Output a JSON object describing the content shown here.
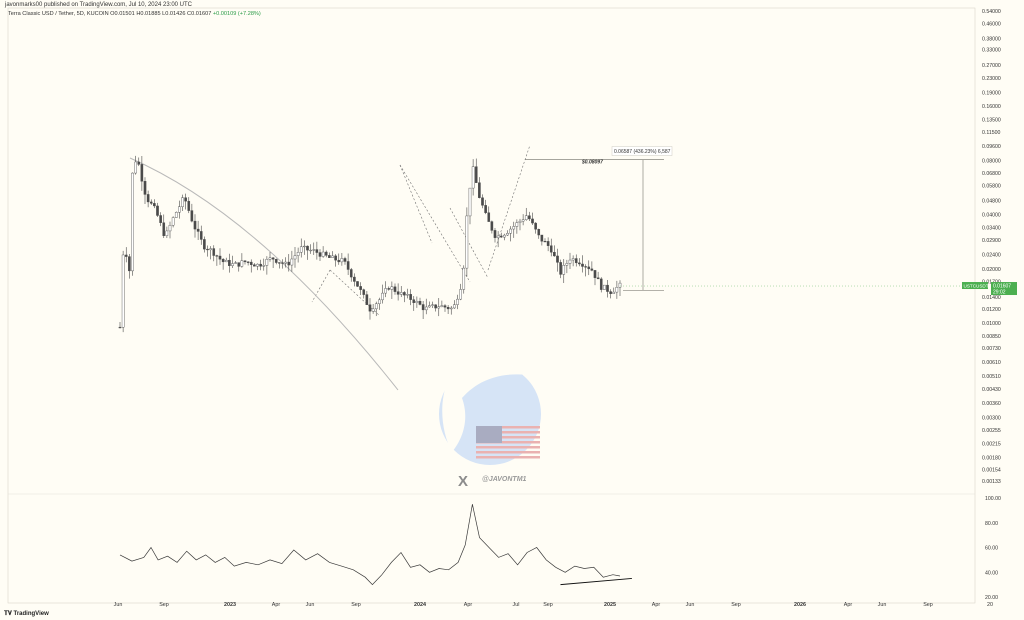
{
  "header": {
    "publisher_line": "javonmarks00 published on TradingView.com, Jul 10, 2024 23:00 UTC",
    "symbol": "Terra Classic USD / Tether, 5D, KUCOIN",
    "ohlc": {
      "open": "O0.01501",
      "high": "H0.01885",
      "low": "L0.01426",
      "close": "C0.01607",
      "change": "+0.00109 (+7.28%)"
    }
  },
  "chart_data": [
    {
      "type": "candlestick",
      "title": "Terra Classic USD / Tether, 5D, KUCOIN",
      "y_scale": "log",
      "y_ticks": [
        "0.54000",
        "0.46000",
        "0.38000",
        "0.33000",
        "0.27000",
        "0.23000",
        "0.19000",
        "0.16000",
        "0.13500",
        "0.11500",
        "0.09600",
        "0.08000",
        "0.06800",
        "0.05800",
        "0.04800",
        "0.04000",
        "0.03400",
        "0.02900",
        "0.02400",
        "0.02000",
        "0.01700",
        "0.01400",
        "0.01200",
        "0.01000",
        "0.00850",
        "0.00730",
        "0.00610",
        "0.00510",
        "0.00430",
        "0.00360",
        "0.00300",
        "0.00255",
        "0.00215",
        "0.00180",
        "0.00154",
        "0.00133"
      ],
      "x_ticks": [
        "Jun",
        "Sep",
        "2023",
        "Apr",
        "Jun",
        "Sep",
        "2024",
        "Apr",
        "Jul",
        "Sep",
        "2025",
        "Apr",
        "Jun",
        "Sep",
        "2026",
        "Apr",
        "Jun",
        "Sep",
        "20"
      ],
      "close_price_path": [
        [
          2022.42,
          0.0095
        ],
        [
          2022.44,
          0.04
        ],
        [
          2022.455,
          0.012
        ],
        [
          2022.47,
          0.065
        ],
        [
          2022.49,
          0.085
        ],
        [
          2022.53,
          0.05
        ],
        [
          2022.57,
          0.042
        ],
        [
          2022.61,
          0.03
        ],
        [
          2022.65,
          0.04
        ],
        [
          2022.69,
          0.05
        ],
        [
          2022.73,
          0.035
        ],
        [
          2022.77,
          0.027
        ],
        [
          2022.81,
          0.025
        ],
        [
          2022.85,
          0.022
        ],
        [
          2022.9,
          0.021
        ],
        [
          2022.95,
          0.022
        ],
        [
          2023.0,
          0.021
        ],
        [
          2023.06,
          0.023
        ],
        [
          2023.12,
          0.021
        ],
        [
          2023.18,
          0.026
        ],
        [
          2023.24,
          0.025
        ],
        [
          2023.3,
          0.023
        ],
        [
          2023.36,
          0.022
        ],
        [
          2023.42,
          0.016
        ],
        [
          2023.47,
          0.012
        ],
        [
          2023.51,
          0.0135
        ],
        [
          2023.55,
          0.016
        ],
        [
          2023.6,
          0.0145
        ],
        [
          2023.65,
          0.0135
        ],
        [
          2023.7,
          0.012
        ],
        [
          2023.76,
          0.0125
        ],
        [
          2023.82,
          0.012
        ],
        [
          2023.86,
          0.0175
        ],
        [
          2023.88,
          0.045
        ],
        [
          2023.9,
          0.074
        ],
        [
          2023.93,
          0.05
        ],
        [
          2023.96,
          0.038
        ],
        [
          2024.0,
          0.03
        ],
        [
          2024.04,
          0.032
        ],
        [
          2024.08,
          0.035
        ],
        [
          2024.13,
          0.04
        ],
        [
          2024.18,
          0.03
        ],
        [
          2024.23,
          0.026
        ],
        [
          2024.27,
          0.019
        ],
        [
          2024.31,
          0.023
        ],
        [
          2024.35,
          0.022
        ],
        [
          2024.4,
          0.02
        ],
        [
          2024.44,
          0.016
        ],
        [
          2024.48,
          0.015
        ],
        [
          2024.52,
          0.0161
        ]
      ],
      "last_price_label": "USTCUSDT",
      "last_price": "0.01607",
      "countdown": "29:02",
      "projection": {
        "target_label": "$0.08097",
        "measure_text": "0.06587 (436.23%) 6,587"
      },
      "overlay_text": "@JAVONTM1"
    },
    {
      "type": "line",
      "name": "RSI",
      "y_ticks": [
        "100.00",
        "80.00",
        "60.00",
        "40.00",
        "20.00"
      ],
      "ylim": [
        20,
        100
      ],
      "x": [
        2022.42,
        2022.47,
        2022.52,
        2022.55,
        2022.58,
        2022.62,
        2022.66,
        2022.7,
        2022.74,
        2022.78,
        2022.82,
        2022.86,
        2022.9,
        2022.95,
        2023.0,
        2023.05,
        2023.1,
        2023.15,
        2023.2,
        2023.25,
        2023.3,
        2023.35,
        2023.4,
        2023.45,
        2023.48,
        2023.52,
        2023.56,
        2023.6,
        2023.64,
        2023.68,
        2023.72,
        2023.76,
        2023.8,
        2023.84,
        2023.87,
        2023.9,
        2023.93,
        2023.97,
        2024.01,
        2024.05,
        2024.09,
        2024.13,
        2024.17,
        2024.21,
        2024.25,
        2024.29,
        2024.33,
        2024.37,
        2024.41,
        2024.45,
        2024.49,
        2024.52
      ],
      "values": [
        54,
        49,
        52,
        60,
        50,
        53,
        48,
        57,
        50,
        54,
        48,
        52,
        45,
        48,
        46,
        50,
        47,
        58,
        50,
        55,
        48,
        45,
        42,
        36,
        30,
        38,
        48,
        56,
        44,
        46,
        40,
        43,
        42,
        48,
        62,
        95,
        68,
        60,
        52,
        55,
        46,
        56,
        60,
        50,
        44,
        40,
        45,
        43,
        44,
        36,
        38,
        37
      ],
      "trendline": [
        [
          2024.27,
          30
        ],
        [
          2024.57,
          35
        ]
      ]
    }
  ],
  "watermark": {
    "brand": "TradingView"
  }
}
